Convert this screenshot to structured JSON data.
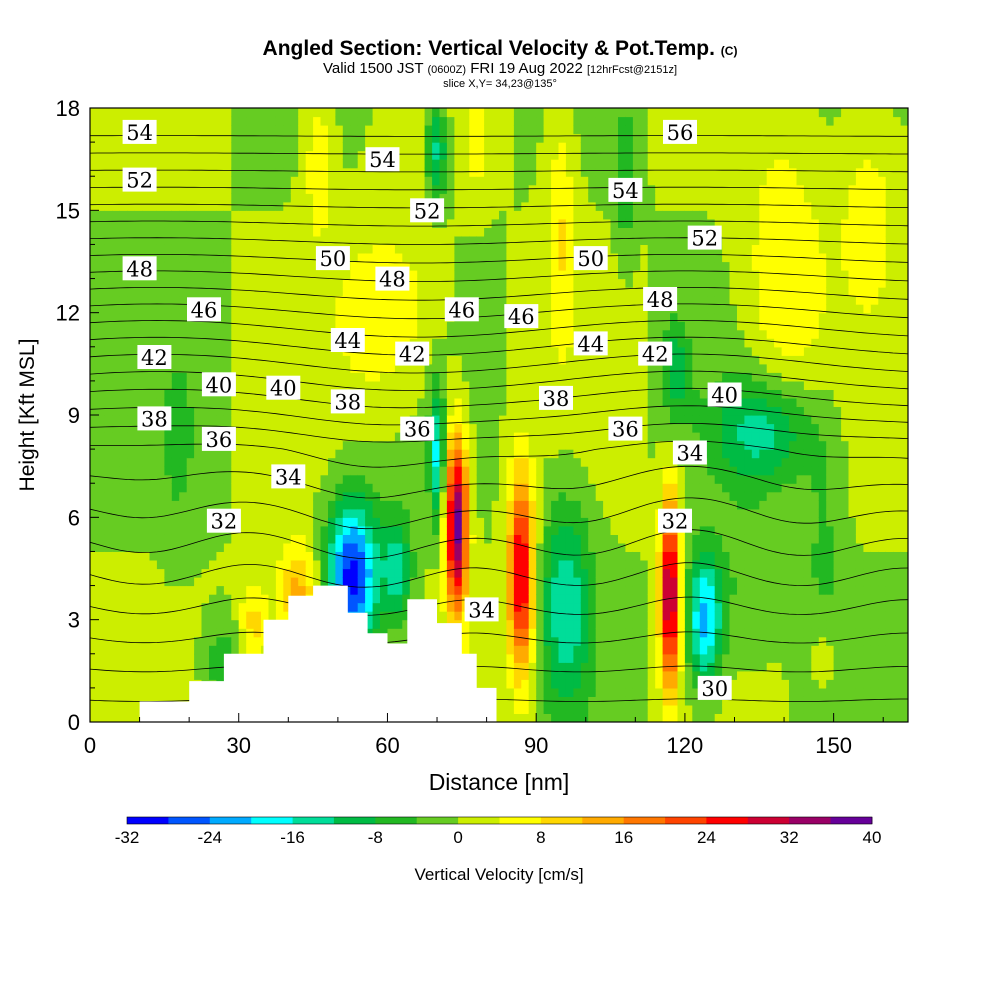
{
  "header": {
    "title": "Angled Section: Vertical Velocity & Pot.Temp.",
    "copyright": "(C)",
    "valid_prefix": "Valid 1500 JST",
    "utc": "(0600Z)",
    "valid_date": "FRI 19 Aug 2022",
    "forecast": "[12hrFcst@2151z]",
    "slice": "slice X,Y= 34,23@135°"
  },
  "chart_data": {
    "type": "heatmap",
    "xlabel": "Distance [nm]",
    "ylabel": "Height [Kft MSL]",
    "xlim": [
      0,
      165
    ],
    "ylim": [
      0,
      18
    ],
    "x_ticks": [
      0,
      30,
      60,
      90,
      120,
      150
    ],
    "y_ticks": [
      0,
      3,
      6,
      9,
      12,
      15,
      18
    ],
    "colorbar": {
      "label": "Vertical Velocity [cm/s]",
      "min": -32,
      "max": 40,
      "step": 4,
      "tick_labels": [
        -32,
        -24,
        -16,
        -8,
        0,
        8,
        16,
        24,
        32,
        40
      ],
      "colors": [
        "#0000ff",
        "#0055ff",
        "#00aaff",
        "#00ffff",
        "#00dd99",
        "#00bb44",
        "#22b822",
        "#66cc22",
        "#ccee00",
        "#ffff00",
        "#ffd700",
        "#ffaa00",
        "#ff7700",
        "#ff4400",
        "#ff0000",
        "#cc0033",
        "#990066",
        "#660099"
      ]
    },
    "terrain": [
      [
        0,
        0
      ],
      [
        10,
        0
      ],
      [
        10,
        0.6
      ],
      [
        20,
        0.6
      ],
      [
        20,
        1.2
      ],
      [
        27,
        1.2
      ],
      [
        27,
        2
      ],
      [
        35,
        2
      ],
      [
        35,
        3
      ],
      [
        40,
        3
      ],
      [
        40,
        3.7
      ],
      [
        45,
        3.7
      ],
      [
        45,
        4
      ],
      [
        52,
        4
      ],
      [
        52,
        3.2
      ],
      [
        56,
        3.2
      ],
      [
        56,
        2.6
      ],
      [
        60,
        2.6
      ],
      [
        60,
        2.3
      ],
      [
        64,
        2.3
      ],
      [
        64,
        3.6
      ],
      [
        70,
        3.6
      ],
      [
        70,
        2.9
      ],
      [
        75,
        2.9
      ],
      [
        75,
        2
      ],
      [
        78,
        2
      ],
      [
        78,
        1
      ],
      [
        82,
        1
      ],
      [
        82,
        0
      ],
      [
        165,
        0
      ]
    ],
    "contours": {
      "label": "Pot.Temp.",
      "levels": [
        30,
        31,
        32,
        33,
        34,
        35,
        36,
        37,
        38,
        39,
        40,
        41,
        42,
        43,
        44,
        45,
        46,
        47,
        48,
        49,
        50,
        51,
        52,
        53,
        54,
        55,
        56
      ],
      "labels": [
        {
          "text": "54",
          "x": 10,
          "y": 17.3
        },
        {
          "text": "52",
          "x": 10,
          "y": 15.9
        },
        {
          "text": "48",
          "x": 10,
          "y": 13.3
        },
        {
          "text": "46",
          "x": 23,
          "y": 12.1
        },
        {
          "text": "42",
          "x": 13,
          "y": 10.7
        },
        {
          "text": "40",
          "x": 26,
          "y": 9.9
        },
        {
          "text": "38",
          "x": 13,
          "y": 8.9
        },
        {
          "text": "36",
          "x": 26,
          "y": 8.3
        },
        {
          "text": "32",
          "x": 27,
          "y": 5.9
        },
        {
          "text": "34",
          "x": 40,
          "y": 7.2
        },
        {
          "text": "40",
          "x": 39,
          "y": 9.8
        },
        {
          "text": "38",
          "x": 52,
          "y": 9.4
        },
        {
          "text": "44",
          "x": 52,
          "y": 11.2
        },
        {
          "text": "50",
          "x": 49,
          "y": 13.6
        },
        {
          "text": "48",
          "x": 61,
          "y": 13.0
        },
        {
          "text": "54",
          "x": 59,
          "y": 16.5
        },
        {
          "text": "52",
          "x": 68,
          "y": 15.0
        },
        {
          "text": "42",
          "x": 65,
          "y": 10.8
        },
        {
          "text": "36",
          "x": 66,
          "y": 8.6
        },
        {
          "text": "46",
          "x": 75,
          "y": 12.1
        },
        {
          "text": "46",
          "x": 87,
          "y": 11.9
        },
        {
          "text": "34",
          "x": 79,
          "y": 3.3
        },
        {
          "text": "38",
          "x": 94,
          "y": 9.5
        },
        {
          "text": "50",
          "x": 101,
          "y": 13.6
        },
        {
          "text": "44",
          "x": 101,
          "y": 11.1
        },
        {
          "text": "54",
          "x": 108,
          "y": 15.6
        },
        {
          "text": "36",
          "x": 108,
          "y": 8.6
        },
        {
          "text": "56",
          "x": 119,
          "y": 17.3
        },
        {
          "text": "48",
          "x": 115,
          "y": 12.4
        },
        {
          "text": "42",
          "x": 114,
          "y": 10.8
        },
        {
          "text": "52",
          "x": 124,
          "y": 14.2
        },
        {
          "text": "34",
          "x": 121,
          "y": 7.9
        },
        {
          "text": "32",
          "x": 118,
          "y": 5.9
        },
        {
          "text": "40",
          "x": 128,
          "y": 9.6
        },
        {
          "text": "30",
          "x": 126,
          "y": 1.0
        }
      ]
    }
  }
}
